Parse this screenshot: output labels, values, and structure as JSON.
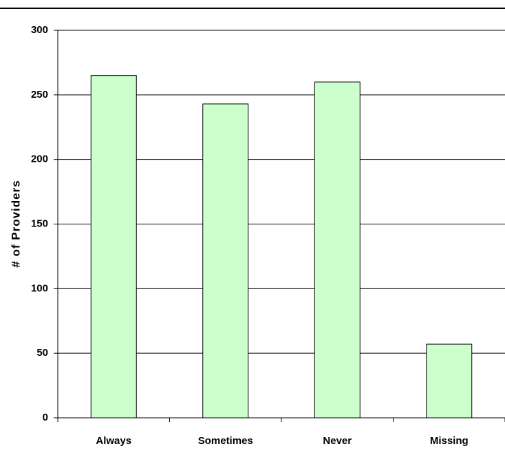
{
  "chart_data": {
    "type": "bar",
    "y_label": "# of Providers",
    "categories": [
      "Always",
      "Sometimes",
      "Never",
      "Missing"
    ],
    "values": [
      265,
      243,
      260,
      57
    ],
    "color": "#ccffcc",
    "ylim": [
      0,
      300
    ],
    "yticks": [
      0,
      50,
      100,
      150,
      200,
      250,
      300
    ],
    "grid": true
  }
}
